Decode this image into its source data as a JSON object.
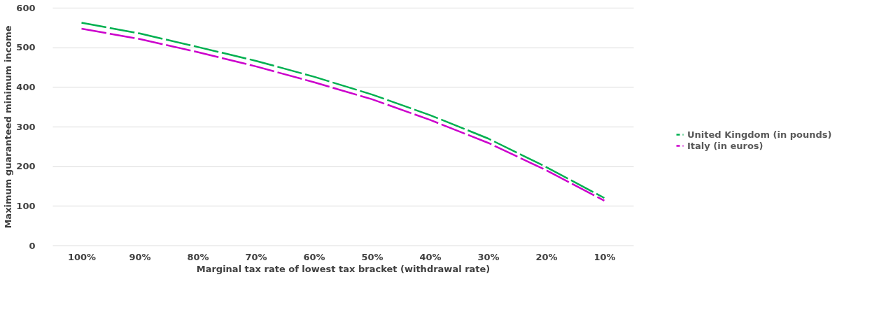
{
  "chart_data": {
    "type": "line",
    "xlabel": "Marginal tax rate of lowest tax bracket (withdrawal rate)",
    "ylabel": "Maximum guaranteed minimum income",
    "categories": [
      "100%",
      "90%",
      "80%",
      "70%",
      "60%",
      "50%",
      "40%",
      "30%",
      "20%",
      "10%"
    ],
    "series": [
      {
        "name": "United Kingdom (in pounds)",
        "color": "#00b050",
        "values": [
          562,
          535,
          501,
          466,
          426,
          381,
          329,
          270,
          198,
          120
        ]
      },
      {
        "name": "Italy (in euros)",
        "color": "#cc00cc",
        "values": [
          547,
          521,
          488,
          452,
          412,
          369,
          317,
          259,
          190,
          113
        ]
      }
    ],
    "ylim": [
      0,
      600
    ],
    "yticks": [
      0,
      100,
      200,
      300,
      400,
      500,
      600
    ],
    "grid": "y",
    "legend": "right",
    "line_style": "dashed",
    "marker": "none"
  }
}
